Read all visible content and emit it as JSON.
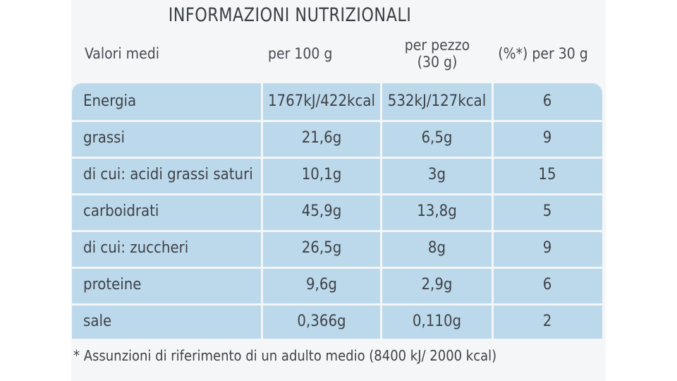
{
  "title": "INFORMAZIONI NUTRIZIONALI",
  "headers": {
    "col0": "Valori medi",
    "col1": "per 100 g",
    "col2_line1": "per pezzo",
    "col2_line2": "(30 g)",
    "col3": "(%*) per 30 g"
  },
  "rows": [
    {
      "nutrient": "Energia",
      "per100": "1767kJ/422kcal",
      "perPiece": "532kJ/127kcal",
      "percent": "6"
    },
    {
      "nutrient": "grassi",
      "per100": "21,6g",
      "perPiece": "6,5g",
      "percent": "9"
    },
    {
      "nutrient": "di cui: acidi grassi saturi",
      "per100": "10,1g",
      "perPiece": "3g",
      "percent": "15"
    },
    {
      "nutrient": "carboidrati",
      "per100": "45,9g",
      "perPiece": "13,8g",
      "percent": "5"
    },
    {
      "nutrient": "di cui: zuccheri",
      "per100": "26,5g",
      "perPiece": "8g",
      "percent": "9"
    },
    {
      "nutrient": "proteine",
      "per100": "9,6g",
      "perPiece": "2,9g",
      "percent": "6"
    },
    {
      "nutrient": "sale",
      "per100": "0,366g",
      "perPiece": "0,110g",
      "percent": "2"
    }
  ],
  "footnote": "* Assunzioni di riferimento di un adulto medio (8400 kJ/ 2000 kcal)",
  "colors": {
    "table_fill": "#bcd9eb",
    "background": "#f4f6f7",
    "text": "#3e4248"
  }
}
